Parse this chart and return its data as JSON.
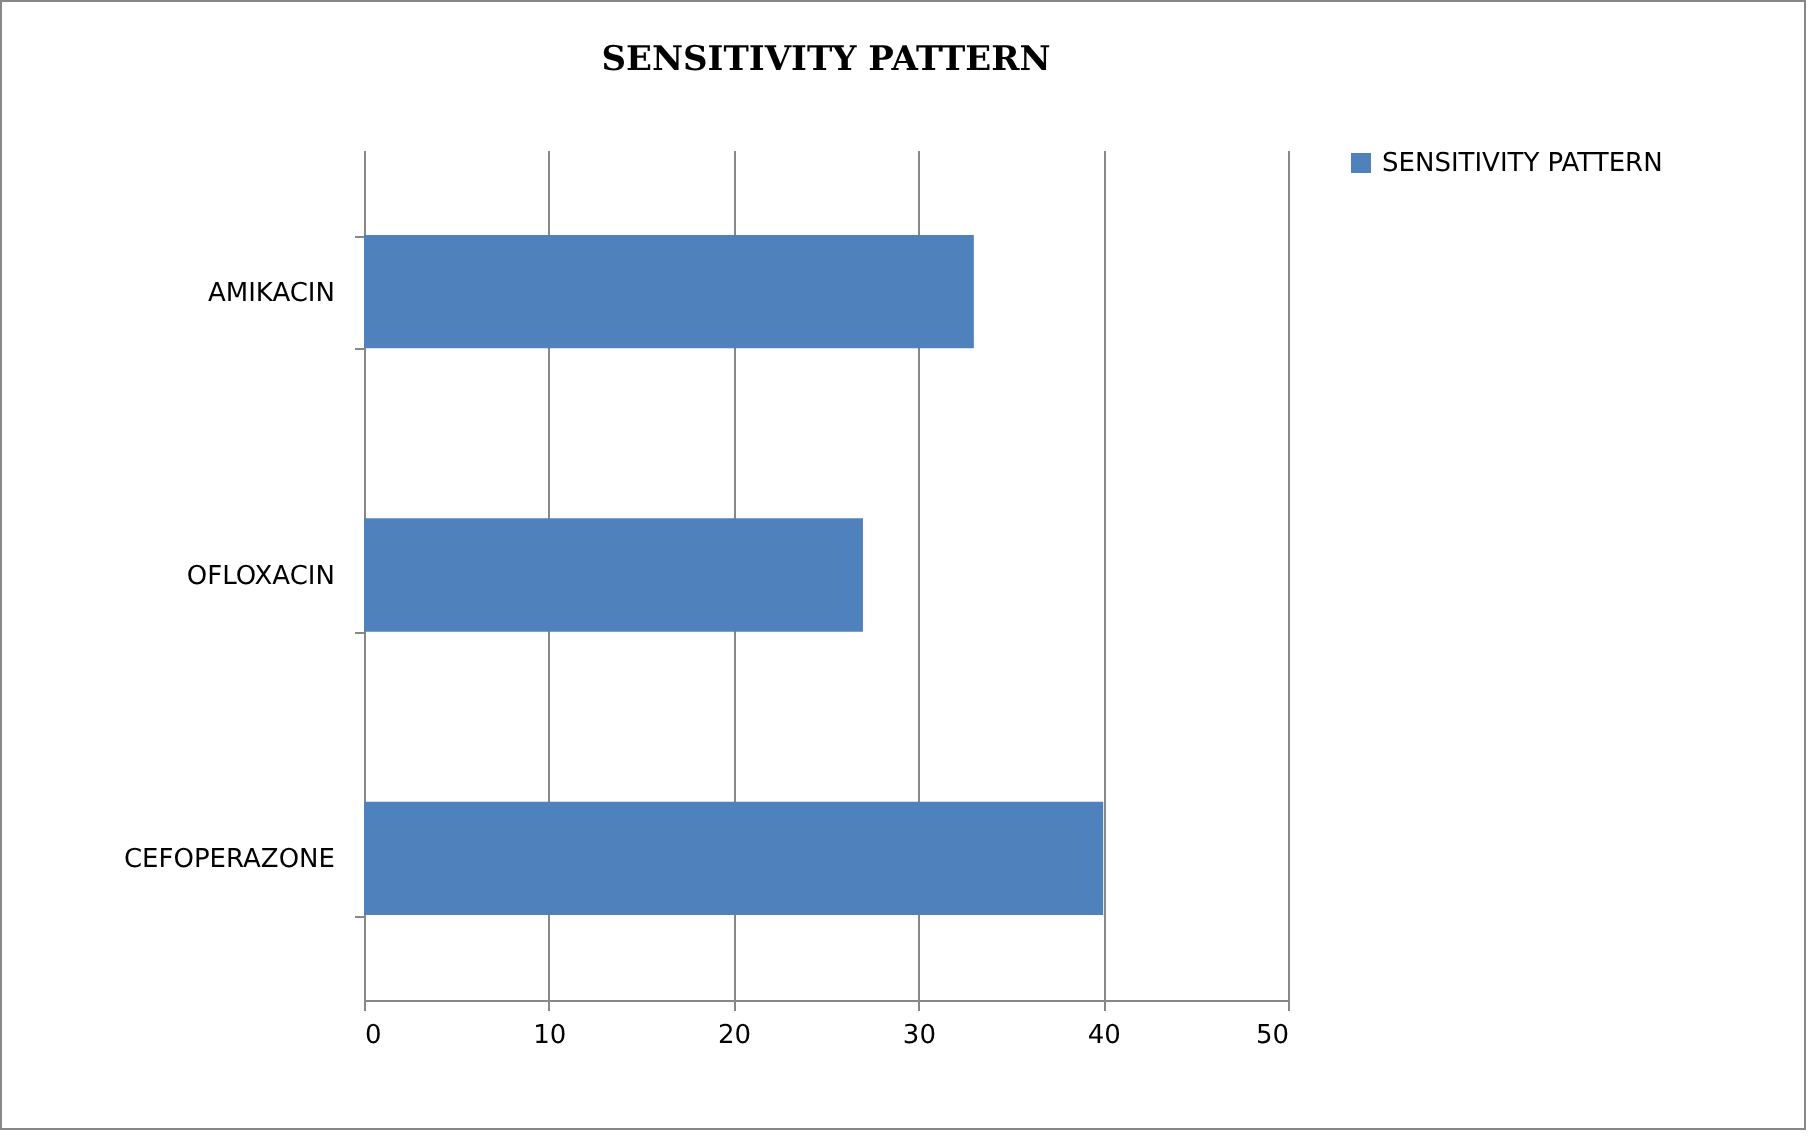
{
  "chart_data": {
    "type": "bar",
    "orientation": "horizontal",
    "title": "SENSITIVITY PATTERN",
    "categories": [
      "AMIKACIN",
      "OFLOXACIN",
      "CEFOPERAZONE"
    ],
    "series": [
      {
        "name": "SENSITIVITY PATTERN",
        "color": "#4f81bd",
        "values": [
          33,
          27,
          40
        ]
      }
    ],
    "xlim": [
      0,
      50
    ],
    "xticks": [
      0,
      10,
      20,
      30,
      40,
      50
    ],
    "grid": "x",
    "legend": "right"
  }
}
